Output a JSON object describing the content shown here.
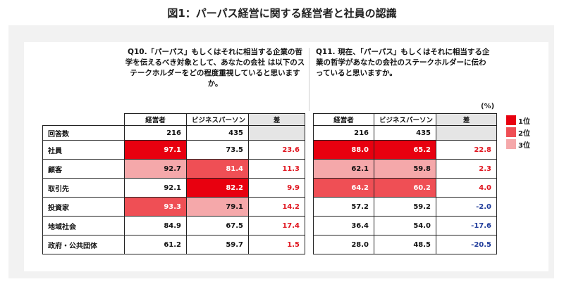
{
  "title": "図1：パーパス経営に関する経営者と社員の認識",
  "questions": {
    "q10": "Q10.「パーパス」もしくはそれに相当する企業の哲学を伝えるべき対象として、あなたの会社 は以下のステークホルダーをどの程度重視していると思いますか。",
    "q11": "Q11. 現在、「パーパス」もしくはそれに相当する企業の哲学があなたの会社のステークホルダーに伝わっていると思いますか。"
  },
  "unit": "(%)",
  "legend": [
    {
      "label": "1位",
      "color": "#e8000f"
    },
    {
      "label": "2位",
      "color": "#ef4f55"
    },
    {
      "label": "3位",
      "color": "#f5a8aa"
    }
  ],
  "colors": {
    "rank1": "#e8000f",
    "rank2": "#ef4f55",
    "rank3": "#f5a8aa",
    "positive": "#e0141e",
    "negative": "#1d3a9a",
    "diff_bg": "#e5e5e5"
  },
  "chart_data": {
    "type": "table",
    "columns": [
      "経営者",
      "ビジネスパーソン",
      "差",
      "経営者",
      "ビジネスパーソン",
      "差"
    ],
    "count_row": {
      "label": "回答数",
      "values": [
        "216",
        "435",
        "",
        "216",
        "435",
        ""
      ]
    },
    "rows": [
      {
        "label": "社員",
        "cells": [
          {
            "v": "97.1",
            "rank": 1
          },
          {
            "v": "73.5",
            "rank": 0
          },
          {
            "v": "23.6",
            "rank": 0
          },
          {
            "v": "88.0",
            "rank": 1
          },
          {
            "v": "65.2",
            "rank": 1
          },
          {
            "v": "22.8",
            "rank": 0
          }
        ]
      },
      {
        "label": "顧客",
        "cells": [
          {
            "v": "92.7",
            "rank": 3
          },
          {
            "v": "81.4",
            "rank": 2
          },
          {
            "v": "11.3",
            "rank": 0
          },
          {
            "v": "62.1",
            "rank": 3
          },
          {
            "v": "59.8",
            "rank": 3
          },
          {
            "v": "2.3",
            "rank": 0
          }
        ]
      },
      {
        "label": "取引先",
        "cells": [
          {
            "v": "92.1",
            "rank": 0
          },
          {
            "v": "82.2",
            "rank": 1
          },
          {
            "v": "9.9",
            "rank": 0
          },
          {
            "v": "64.2",
            "rank": 2
          },
          {
            "v": "60.2",
            "rank": 2
          },
          {
            "v": "4.0",
            "rank": 0
          }
        ]
      },
      {
        "label": "投資家",
        "cells": [
          {
            "v": "93.3",
            "rank": 2
          },
          {
            "v": "79.1",
            "rank": 3
          },
          {
            "v": "14.2",
            "rank": 0
          },
          {
            "v": "57.2",
            "rank": 0
          },
          {
            "v": "59.2",
            "rank": 0
          },
          {
            "v": "-2.0",
            "rank": 0
          }
        ]
      },
      {
        "label": "地域社会",
        "cells": [
          {
            "v": "84.9",
            "rank": 0
          },
          {
            "v": "67.5",
            "rank": 0
          },
          {
            "v": "17.4",
            "rank": 0
          },
          {
            "v": "36.4",
            "rank": 0
          },
          {
            "v": "54.0",
            "rank": 0
          },
          {
            "v": "-17.6",
            "rank": 0
          }
        ]
      },
      {
        "label": "政府・公共団体",
        "cells": [
          {
            "v": "61.2",
            "rank": 0
          },
          {
            "v": "59.7",
            "rank": 0
          },
          {
            "v": "1.5",
            "rank": 0
          },
          {
            "v": "28.0",
            "rank": 0
          },
          {
            "v": "48.5",
            "rank": 0
          },
          {
            "v": "-20.5",
            "rank": 0
          }
        ]
      }
    ]
  }
}
